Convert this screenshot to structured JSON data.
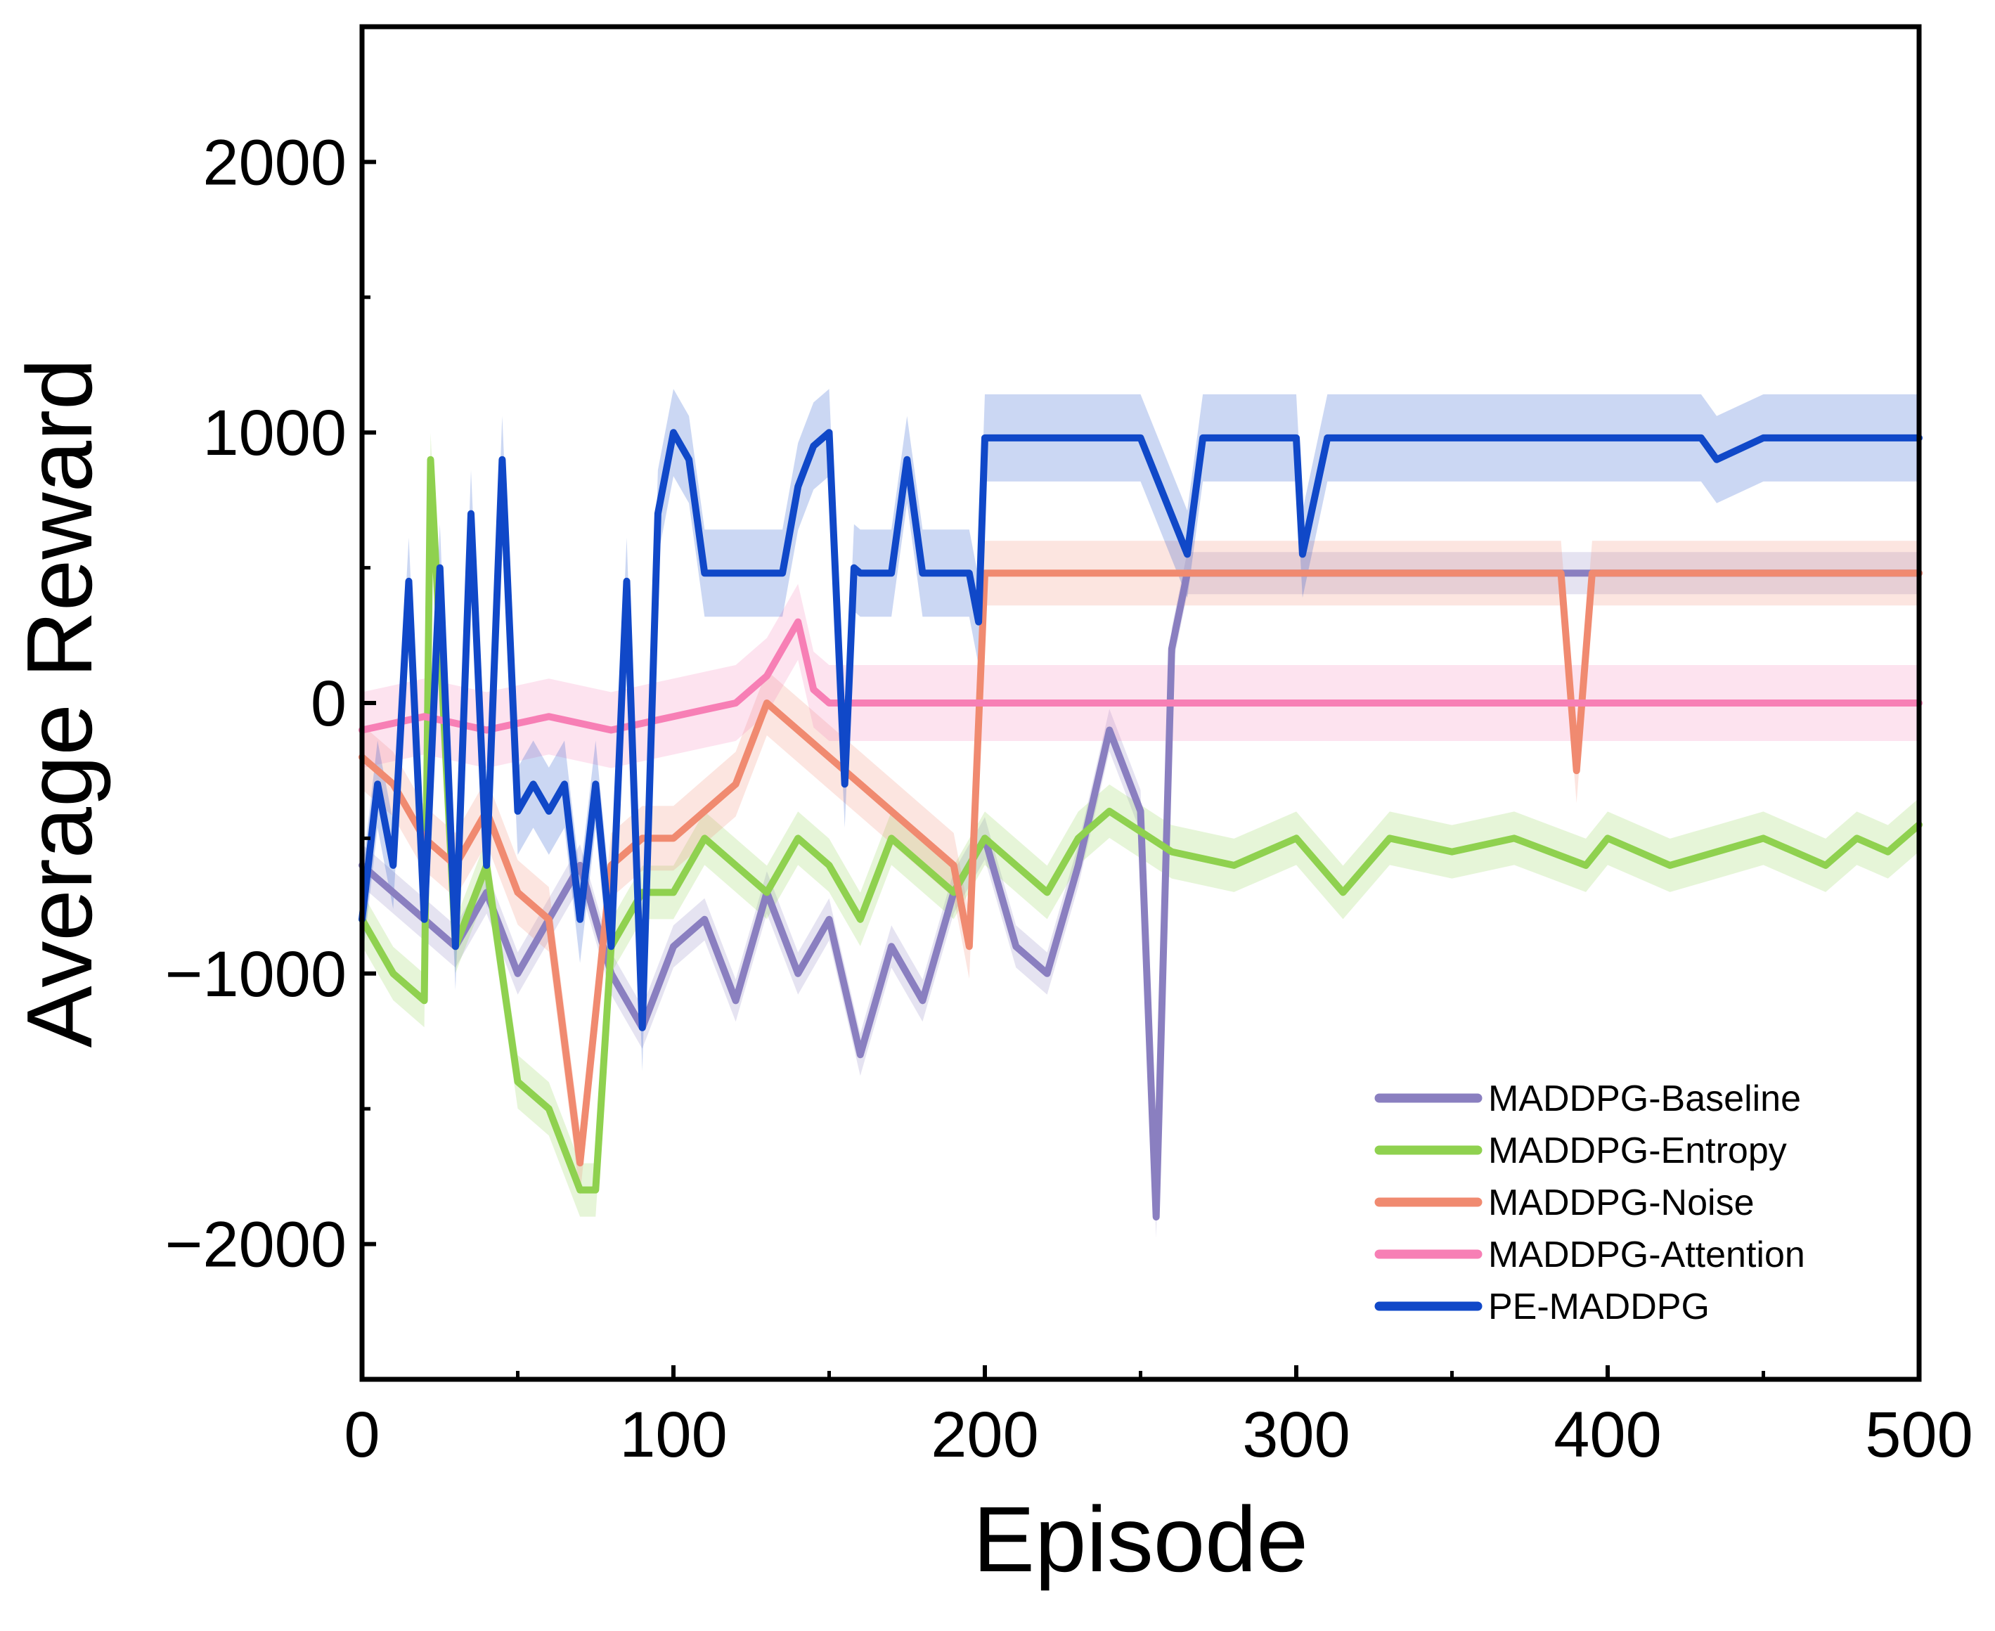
{
  "chart_data": {
    "type": "line",
    "xlabel": "Episode",
    "ylabel": "Average Reward",
    "xlim": [
      0,
      500
    ],
    "ylim": [
      -2500,
      2500
    ],
    "x_ticks": [
      0,
      100,
      200,
      300,
      400,
      500
    ],
    "y_ticks": [
      -2000,
      -1000,
      0,
      1000,
      2000
    ],
    "x_tick_labels": [
      "0",
      "100",
      "200",
      "300",
      "400",
      "500"
    ],
    "y_tick_labels": [
      "−2000",
      "−1000",
      "0",
      "1000",
      "2000"
    ],
    "grid": false,
    "legend_position": "bottom-right",
    "series": [
      {
        "name": "MADDPG-Baseline",
        "color": "#8a7fc0",
        "x": [
          0,
          10,
          20,
          30,
          40,
          50,
          60,
          70,
          80,
          90,
          100,
          110,
          120,
          130,
          140,
          150,
          160,
          170,
          180,
          190,
          200,
          210,
          220,
          230,
          240,
          250,
          255,
          260,
          265,
          270,
          280,
          290,
          300,
          350,
          400,
          430,
          500
        ],
        "y": [
          -600,
          -700,
          -800,
          -900,
          -700,
          -1000,
          -800,
          -600,
          -1000,
          -1200,
          -900,
          -800,
          -1100,
          -700,
          -1000,
          -800,
          -1300,
          -900,
          -1100,
          -700,
          -500,
          -900,
          -1000,
          -600,
          -100,
          -400,
          -1900,
          200,
          480,
          480,
          480,
          480,
          480,
          480,
          480,
          480,
          480
        ]
      },
      {
        "name": "MADDPG-Entropy",
        "color": "#8fd14f",
        "x": [
          0,
          10,
          20,
          22,
          30,
          40,
          50,
          60,
          70,
          75,
          80,
          90,
          100,
          110,
          120,
          130,
          140,
          150,
          160,
          170,
          180,
          190,
          200,
          210,
          220,
          230,
          240,
          260,
          280,
          300,
          315,
          330,
          350,
          370,
          393,
          400,
          420,
          450,
          470,
          480,
          490,
          500
        ],
        "y": [
          -800,
          -1000,
          -1100,
          900,
          -900,
          -600,
          -1400,
          -1500,
          -1800,
          -1800,
          -900,
          -700,
          -700,
          -500,
          -600,
          -700,
          -500,
          -600,
          -800,
          -500,
          -600,
          -700,
          -500,
          -600,
          -700,
          -500,
          -400,
          -550,
          -600,
          -500,
          -700,
          -500,
          -550,
          -500,
          -600,
          -500,
          -600,
          -500,
          -600,
          -500,
          -550,
          -450
        ]
      },
      {
        "name": "MADDPG-Noise",
        "color": "#f08a70",
        "x": [
          0,
          10,
          20,
          30,
          40,
          50,
          60,
          70,
          80,
          90,
          100,
          110,
          120,
          130,
          140,
          150,
          160,
          170,
          180,
          190,
          195,
          200,
          210,
          220,
          230,
          240,
          260,
          280,
          290,
          300,
          310,
          320,
          330,
          340,
          360,
          380,
          385,
          390,
          395,
          400,
          450,
          500
        ],
        "y": [
          -200,
          -300,
          -500,
          -600,
          -400,
          -700,
          -800,
          -1700,
          -600,
          -500,
          -500,
          -400,
          -300,
          0,
          -100,
          -200,
          -300,
          -400,
          -500,
          -600,
          -900,
          480,
          480,
          480,
          480,
          480,
          480,
          480,
          480,
          480,
          480,
          480,
          480,
          480,
          480,
          480,
          480,
          -250,
          480,
          480,
          480,
          480
        ]
      },
      {
        "name": "MADDPG-Attention",
        "color": "#f77fb5",
        "x": [
          0,
          20,
          40,
          60,
          80,
          100,
          120,
          130,
          140,
          145,
          150,
          155,
          160,
          200,
          300,
          400,
          500
        ],
        "y": [
          -100,
          -50,
          -100,
          -50,
          -100,
          -50,
          0,
          100,
          300,
          50,
          0,
          0,
          0,
          0,
          0,
          0,
          0
        ]
      },
      {
        "name": "PE-MADDPG",
        "color": "#1048c8",
        "x": [
          0,
          5,
          10,
          15,
          20,
          25,
          30,
          35,
          40,
          45,
          50,
          55,
          60,
          65,
          70,
          75,
          80,
          85,
          90,
          95,
          100,
          105,
          110,
          115,
          120,
          130,
          135,
          140,
          145,
          150,
          155,
          158,
          160,
          170,
          175,
          180,
          190,
          195,
          198,
          200,
          210,
          220,
          230,
          240,
          250,
          265,
          270,
          280,
          290,
          300,
          302,
          310,
          330,
          350,
          400,
          430,
          435,
          450,
          500
        ],
        "y": [
          -800,
          -300,
          -600,
          450,
          -800,
          500,
          -900,
          700,
          -600,
          900,
          -400,
          -300,
          -400,
          -300,
          -800,
          -300,
          -900,
          450,
          -1200,
          700,
          1000,
          900,
          480,
          480,
          480,
          480,
          480,
          800,
          950,
          1000,
          -300,
          500,
          480,
          480,
          900,
          480,
          480,
          480,
          300,
          980,
          980,
          980,
          980,
          980,
          980,
          550,
          980,
          980,
          980,
          980,
          550,
          980,
          980,
          980,
          980,
          980,
          900,
          980,
          980
        ]
      }
    ]
  }
}
